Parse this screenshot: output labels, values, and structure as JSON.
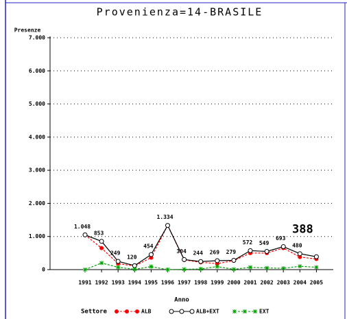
{
  "chart_data": {
    "type": "line",
    "title": "Provenienza=14-BRASILE",
    "y_label": "Presenze",
    "x_label": "Anno",
    "legend_title": "Settore",
    "categories": [
      "1991",
      "1992",
      "1993",
      "1994",
      "1995",
      "1996",
      "1997",
      "1998",
      "1999",
      "2000",
      "2001",
      "2002",
      "2003",
      "2004",
      "2005"
    ],
    "series": [
      {
        "name": "ALB",
        "color": "#ff0000",
        "marker": "dot",
        "dashed": true,
        "values": [
          1048,
          650,
          180,
          110,
          360,
          1334,
          290,
          220,
          180,
          270,
          500,
          500,
          650,
          380,
          320
        ]
      },
      {
        "name": "ALB+EXT",
        "color": "#000000",
        "marker": "ring",
        "dashed": false,
        "values": [
          1048,
          853,
          249,
          120,
          454,
          1334,
          304,
          244,
          269,
          279,
          572,
          549,
          693,
          480,
          388
        ],
        "value_labels": [
          "1.048",
          "853",
          "249",
          "120",
          "454",
          "1.334",
          "304",
          "244",
          "269",
          "279",
          "572",
          "549",
          "693",
          "480",
          "388"
        ]
      },
      {
        "name": "EXT",
        "color": "#00a000",
        "marker": "star",
        "dashed": true,
        "values": [
          0,
          200,
          70,
          10,
          90,
          0,
          10,
          20,
          90,
          10,
          70,
          50,
          40,
          100,
          70
        ]
      }
    ],
    "ylim": [
      0,
      7000
    ],
    "yticks": [
      0,
      {
        "value": 1000,
        "label": "1.000"
      },
      {
        "value": 2000,
        "label": "2.000"
      },
      {
        "value": 3000,
        "label": "3.000"
      },
      {
        "value": 4000,
        "label": "4.000"
      },
      {
        "value": 5000,
        "label": "5.000"
      },
      {
        "value": 6000,
        "label": "6.000"
      },
      {
        "value": 7000,
        "label": "7.000"
      }
    ],
    "grid": true
  }
}
